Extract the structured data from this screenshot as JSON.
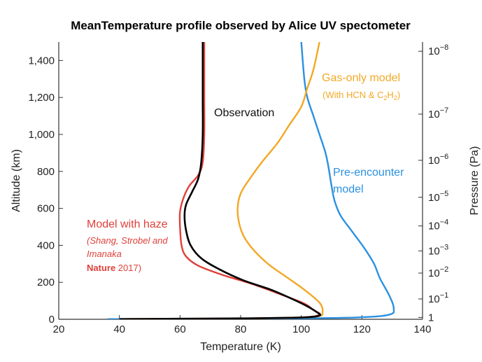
{
  "chart_data": {
    "type": "line",
    "title": "MeanTemperature profile observed by Alice UV spectometer",
    "xlabel": "Temperature (K)",
    "ylabel": "Altitude (km)",
    "y2label": "Pressure (Pa)",
    "xlim": [
      20,
      140
    ],
    "ylim": [
      0,
      1500
    ],
    "x_ticks": [
      "20",
      "40",
      "60",
      "80",
      "100",
      "120",
      "140"
    ],
    "y_ticks": [
      "0",
      "200",
      "400",
      "600",
      "800",
      "1,000",
      "1,200",
      "1,400"
    ],
    "y2_ticks": [
      {
        "mantissa": "10",
        "exp": "−8",
        "altitude": 1450
      },
      {
        "mantissa": "10",
        "exp": "−7",
        "altitude": 1110
      },
      {
        "mantissa": "10",
        "exp": "−6",
        "altitude": 860
      },
      {
        "mantissa": "10",
        "exp": "−5",
        "altitude": 660
      },
      {
        "mantissa": "10",
        "exp": "−4",
        "altitude": 505
      },
      {
        "mantissa": "10",
        "exp": "−3",
        "altitude": 370
      },
      {
        "mantissa": "10",
        "exp": "−2",
        "altitude": 250
      },
      {
        "mantissa": "10",
        "exp": "−1",
        "altitude": 110
      },
      {
        "mantissa": "1",
        "exp": "",
        "altitude": 10
      }
    ],
    "colors": {
      "observation": "#000000",
      "haze": "#e0403a",
      "gas": "#f2a825",
      "pre": "#2b91e0"
    },
    "series": [
      {
        "key": "pre",
        "name": "Pre-encounter model",
        "points": [
          [
            100,
            1500
          ],
          [
            101,
            1300
          ],
          [
            102,
            1200
          ],
          [
            104,
            1100
          ],
          [
            106,
            1000
          ],
          [
            108,
            900
          ],
          [
            109,
            820
          ],
          [
            110,
            720
          ],
          [
            111,
            640
          ],
          [
            113,
            560
          ],
          [
            117,
            470
          ],
          [
            121,
            380
          ],
          [
            124,
            300
          ],
          [
            126,
            220
          ],
          [
            129,
            130
          ],
          [
            130.5,
            60
          ],
          [
            129,
            25
          ],
          [
            118,
            10
          ],
          [
            90,
            4
          ],
          [
            60,
            2
          ],
          [
            36,
            1
          ]
        ]
      },
      {
        "key": "gas",
        "name": "Gas-only model",
        "points": [
          [
            106,
            1500
          ],
          [
            104,
            1350
          ],
          [
            102,
            1250
          ],
          [
            100,
            1150
          ],
          [
            96,
            1050
          ],
          [
            92,
            950
          ],
          [
            87,
            850
          ],
          [
            83,
            760
          ],
          [
            80,
            680
          ],
          [
            79,
            600
          ],
          [
            79.5,
            520
          ],
          [
            81,
            450
          ],
          [
            84,
            380
          ],
          [
            89,
            300
          ],
          [
            95,
            230
          ],
          [
            101,
            160
          ],
          [
            106,
            90
          ],
          [
            107,
            40
          ],
          [
            105,
            15
          ],
          [
            90,
            6
          ],
          [
            60,
            3
          ],
          [
            40,
            1
          ]
        ]
      },
      {
        "key": "haze",
        "name": "Model with haze",
        "points": [
          [
            68,
            1500
          ],
          [
            68,
            1200
          ],
          [
            68,
            1000
          ],
          [
            67.5,
            850
          ],
          [
            66,
            780
          ],
          [
            63,
            720
          ],
          [
            61,
            650
          ],
          [
            60,
            580
          ],
          [
            60,
            500
          ],
          [
            60.5,
            400
          ],
          [
            62,
            340
          ],
          [
            66,
            290
          ],
          [
            74,
            240
          ],
          [
            84,
            190
          ],
          [
            94,
            130
          ],
          [
            101,
            85
          ],
          [
            104,
            50
          ],
          [
            106,
            25
          ],
          [
            100,
            10
          ],
          [
            80,
            5
          ],
          [
            60,
            3
          ],
          [
            40,
            1
          ]
        ]
      },
      {
        "key": "observation",
        "name": "Observation",
        "points": [
          [
            67.5,
            1500
          ],
          [
            67.5,
            1200
          ],
          [
            67.5,
            1000
          ],
          [
            67,
            850
          ],
          [
            66,
            760
          ],
          [
            64,
            690
          ],
          [
            62,
            620
          ],
          [
            61.5,
            560
          ],
          [
            62,
            480
          ],
          [
            63.5,
            400
          ],
          [
            67,
            330
          ],
          [
            73,
            270
          ],
          [
            81,
            210
          ],
          [
            90,
            160
          ],
          [
            97,
            110
          ],
          [
            102,
            70
          ],
          [
            105,
            40
          ],
          [
            106,
            20
          ],
          [
            100,
            10
          ],
          [
            80,
            5
          ],
          [
            60,
            3
          ],
          [
            40,
            1
          ]
        ]
      }
    ],
    "annotations": {
      "observation": "Observation",
      "gas_line1": "Gas-only model",
      "gas_line2_prefix": "(With HCN  & C",
      "gas_sub1": "2",
      "gas_mid": "H",
      "gas_sub2": "2",
      "gas_suffix": ")",
      "pre_line1": "Pre-encounter",
      "pre_line2": "model",
      "haze_line1": "Model with haze",
      "haze_line2": "(Shang, Strobel and",
      "haze_line3": "Imanaka",
      "haze_bold": "Nature",
      "haze_rest": " 2017)"
    }
  }
}
